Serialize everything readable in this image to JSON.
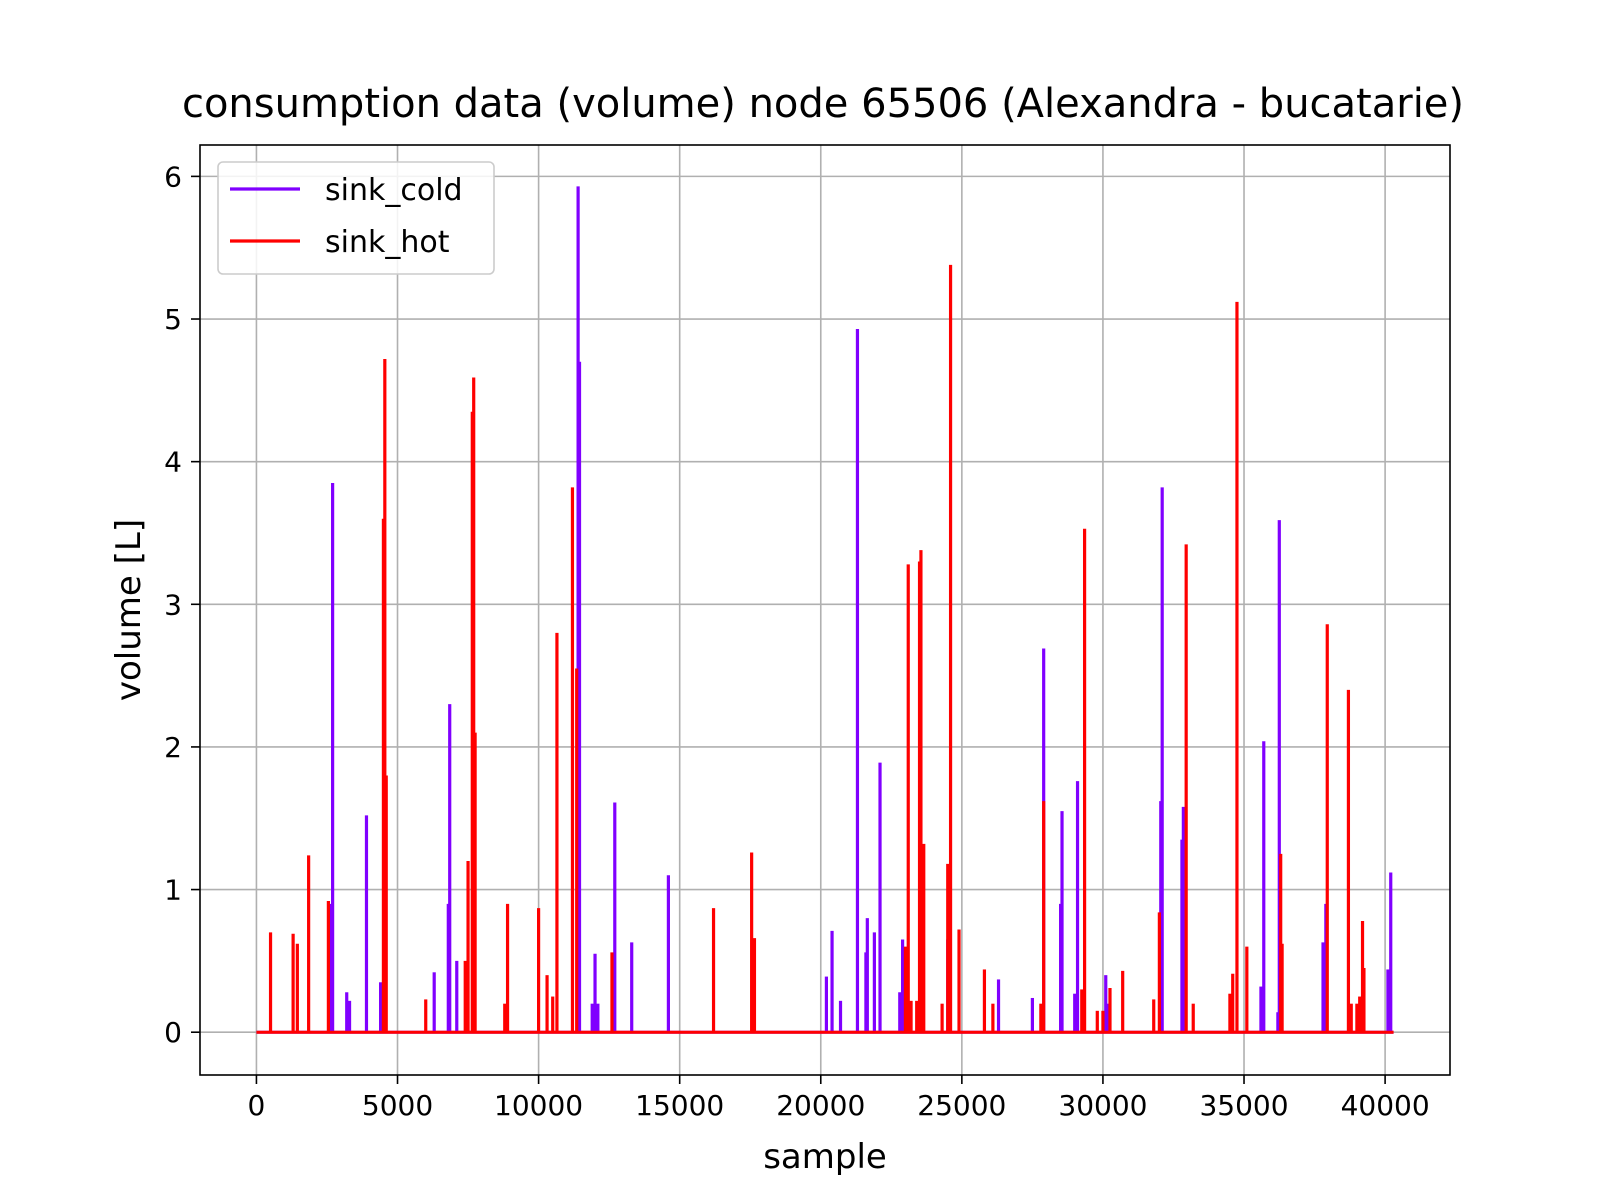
{
  "chart_data": {
    "type": "line",
    "title": "consumption data (volume) node 65506 (Alexandra - bucatarie)",
    "xlabel": "sample",
    "ylabel": "volume [L]",
    "xlim": [
      -2000,
      42300
    ],
    "ylim": [
      -0.3,
      6.22
    ],
    "xticks": [
      0,
      5000,
      10000,
      15000,
      20000,
      25000,
      30000,
      35000,
      40000
    ],
    "xtick_labels": [
      "0",
      "5000",
      "10000",
      "15000",
      "20000",
      "25000",
      "30000",
      "35000",
      "40000"
    ],
    "yticks": [
      0,
      1,
      2,
      3,
      4,
      5,
      6
    ],
    "ytick_labels": [
      "0",
      "1",
      "2",
      "3",
      "4",
      "5",
      "6"
    ],
    "grid": true,
    "legend_position": "top-left",
    "x_range": [
      0,
      40300
    ],
    "series": [
      {
        "name": "sink_cold",
        "color": "#8000ff",
        "spikes": [
          [
            2600,
            0.9
          ],
          [
            2700,
            3.85
          ],
          [
            3200,
            0.28
          ],
          [
            3300,
            0.22
          ],
          [
            3900,
            1.52
          ],
          [
            4400,
            0.35
          ],
          [
            6300,
            0.42
          ],
          [
            6800,
            0.9
          ],
          [
            6850,
            2.3
          ],
          [
            7100,
            0.5
          ],
          [
            11400,
            5.93
          ],
          [
            11450,
            4.7
          ],
          [
            11900,
            0.2
          ],
          [
            12000,
            0.55
          ],
          [
            12100,
            0.2
          ],
          [
            12700,
            1.61
          ],
          [
            13300,
            0.63
          ],
          [
            14600,
            1.1
          ],
          [
            20200,
            0.39
          ],
          [
            20400,
            0.71
          ],
          [
            20700,
            0.22
          ],
          [
            21300,
            4.93
          ],
          [
            21600,
            0.56
          ],
          [
            21650,
            0.8
          ],
          [
            21900,
            0.7
          ],
          [
            22100,
            1.89
          ],
          [
            22800,
            0.28
          ],
          [
            22900,
            0.65
          ],
          [
            24500,
            0.65
          ],
          [
            26300,
            0.37
          ],
          [
            27500,
            0.24
          ],
          [
            27900,
            2.69
          ],
          [
            28500,
            0.9
          ],
          [
            28550,
            1.55
          ],
          [
            29000,
            0.27
          ],
          [
            29100,
            1.76
          ],
          [
            30100,
            0.4
          ],
          [
            30200,
            0.2
          ],
          [
            32050,
            1.62
          ],
          [
            32100,
            3.82
          ],
          [
            32800,
            1.35
          ],
          [
            32850,
            1.58
          ],
          [
            35600,
            0.32
          ],
          [
            35700,
            2.04
          ],
          [
            36200,
            0.14
          ],
          [
            36250,
            3.59
          ],
          [
            37800,
            0.63
          ],
          [
            37900,
            0.9
          ],
          [
            40100,
            0.44
          ],
          [
            40200,
            1.12
          ]
        ]
      },
      {
        "name": "sink_hot",
        "color": "#ff0000",
        "spikes": [
          [
            500,
            0.7
          ],
          [
            1300,
            0.69
          ],
          [
            1450,
            0.62
          ],
          [
            1850,
            1.24
          ],
          [
            2550,
            0.92
          ],
          [
            4500,
            3.6
          ],
          [
            4550,
            4.72
          ],
          [
            4600,
            1.8
          ],
          [
            6000,
            0.23
          ],
          [
            7400,
            0.5
          ],
          [
            7500,
            1.2
          ],
          [
            7650,
            4.35
          ],
          [
            7700,
            4.59
          ],
          [
            7750,
            2.1
          ],
          [
            8800,
            0.2
          ],
          [
            8900,
            0.9
          ],
          [
            10000,
            0.87
          ],
          [
            10300,
            0.4
          ],
          [
            10500,
            0.25
          ],
          [
            10650,
            2.8
          ],
          [
            11200,
            3.82
          ],
          [
            11350,
            2.55
          ],
          [
            12600,
            0.56
          ],
          [
            16200,
            0.87
          ],
          [
            17550,
            1.26
          ],
          [
            17650,
            0.66
          ],
          [
            23000,
            0.6
          ],
          [
            23100,
            3.28
          ],
          [
            23200,
            0.22
          ],
          [
            23400,
            0.22
          ],
          [
            23500,
            3.3
          ],
          [
            23550,
            3.38
          ],
          [
            23650,
            1.32
          ],
          [
            24300,
            0.2
          ],
          [
            24500,
            1.18
          ],
          [
            24600,
            5.38
          ],
          [
            24900,
            0.72
          ],
          [
            25800,
            0.44
          ],
          [
            26100,
            0.2
          ],
          [
            27800,
            0.2
          ],
          [
            27900,
            1.62
          ],
          [
            29800,
            0.15
          ],
          [
            30000,
            0.15
          ],
          [
            30250,
            0.31
          ],
          [
            29350,
            3.53
          ],
          [
            29250,
            0.3
          ],
          [
            30700,
            0.43
          ],
          [
            31800,
            0.23
          ],
          [
            32000,
            0.84
          ],
          [
            32950,
            3.42
          ],
          [
            33200,
            0.2
          ],
          [
            34500,
            0.27
          ],
          [
            34600,
            0.41
          ],
          [
            34750,
            5.12
          ],
          [
            35100,
            0.6
          ],
          [
            36300,
            1.25
          ],
          [
            36350,
            0.62
          ],
          [
            37950,
            2.86
          ],
          [
            38700,
            2.4
          ],
          [
            38800,
            0.2
          ],
          [
            39000,
            0.2
          ],
          [
            39100,
            0.25
          ],
          [
            39200,
            0.78
          ],
          [
            39250,
            0.45
          ]
        ]
      }
    ]
  }
}
